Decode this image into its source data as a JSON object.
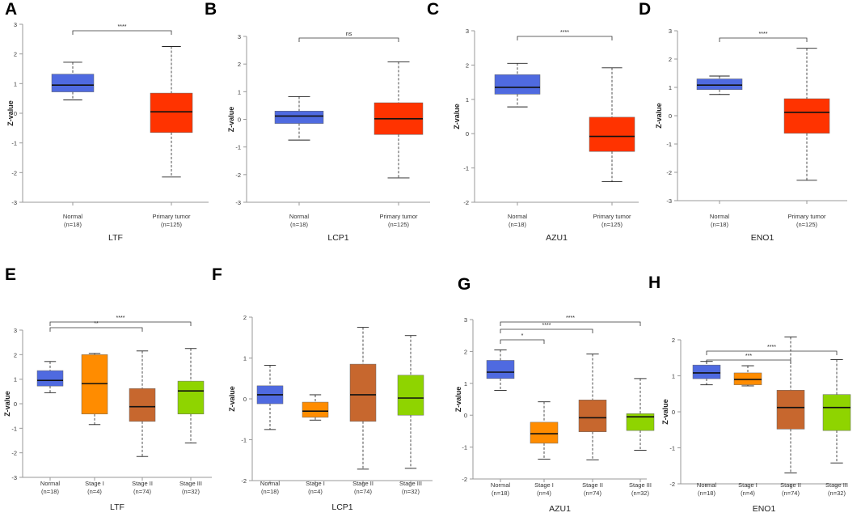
{
  "chart_data": [
    {
      "panel": "A",
      "type": "boxplot",
      "title": "LTF",
      "ylabel": "Z-value",
      "ylim": [
        -3,
        3
      ],
      "yticks": [
        -3,
        -2,
        -1,
        0,
        1,
        2,
        3
      ],
      "categories": [
        {
          "name": "Normal",
          "n": "(n=18)",
          "color": "#4F6AE0",
          "whisker_low": 0.45,
          "q1": 0.72,
          "median": 0.95,
          "q3": 1.32,
          "whisker_high": 1.72
        },
        {
          "name": "Primary tumor",
          "n": "(n=125)",
          "color": "#FF3300",
          "whisker_low": -2.15,
          "q1": -0.65,
          "median": 0.05,
          "q3": 0.68,
          "whisker_high": 2.25
        }
      ],
      "comparisons": [
        {
          "from": 0,
          "to": 1,
          "label": "****"
        }
      ]
    },
    {
      "panel": "B",
      "type": "boxplot",
      "title": "LCP1",
      "ylabel": "Z-value",
      "ylim": [
        -3,
        3
      ],
      "yticks": [
        -3,
        -2,
        -1,
        0,
        1,
        2,
        3
      ],
      "categories": [
        {
          "name": "Normal",
          "n": "(n=18)",
          "color": "#4F6AE0",
          "whisker_low": -0.75,
          "q1": -0.15,
          "median": 0.12,
          "q3": 0.3,
          "whisker_high": 0.82
        },
        {
          "name": "Primary tumor",
          "n": "(n=125)",
          "color": "#FF3300",
          "whisker_low": -2.12,
          "q1": -0.55,
          "median": 0.02,
          "q3": 0.6,
          "whisker_high": 2.08
        }
      ],
      "comparisons": [
        {
          "from": 0,
          "to": 1,
          "label": "ns"
        }
      ]
    },
    {
      "panel": "C",
      "type": "boxplot",
      "title": "AZU1",
      "ylabel": "Z-value",
      "ylim": [
        -2,
        3
      ],
      "yticks": [
        -2,
        -1,
        0,
        1,
        2,
        3
      ],
      "categories": [
        {
          "name": "Normal",
          "n": "(n=18)",
          "color": "#4F6AE0",
          "whisker_low": 0.78,
          "q1": 1.15,
          "median": 1.35,
          "q3": 1.72,
          "whisker_high": 2.05
        },
        {
          "name": "Primary tumor",
          "n": "(n=125)",
          "color": "#FF3300",
          "whisker_low": -1.4,
          "q1": -0.52,
          "median": -0.08,
          "q3": 0.48,
          "whisker_high": 1.92
        }
      ],
      "comparisons": [
        {
          "from": 0,
          "to": 1,
          "label": "****"
        }
      ]
    },
    {
      "panel": "D",
      "type": "boxplot",
      "title": "ENO1",
      "ylabel": "Z-value",
      "ylim": [
        -3,
        3
      ],
      "yticks": [
        -3,
        -2,
        -1,
        0,
        1,
        2,
        3
      ],
      "categories": [
        {
          "name": "Normal",
          "n": "(n=18)",
          "color": "#4F6AE0",
          "whisker_low": 0.75,
          "q1": 0.92,
          "median": 1.08,
          "q3": 1.3,
          "whisker_high": 1.4
        },
        {
          "name": "Primary tumor",
          "n": "(n=125)",
          "color": "#FF3300",
          "whisker_low": -2.28,
          "q1": -0.62,
          "median": 0.12,
          "q3": 0.6,
          "whisker_high": 2.38
        }
      ],
      "comparisons": [
        {
          "from": 0,
          "to": 1,
          "label": "****"
        }
      ]
    },
    {
      "panel": "E",
      "type": "boxplot",
      "title": "LTF",
      "ylabel": "Z-value",
      "ylim": [
        -3,
        3
      ],
      "yticks": [
        -3,
        -2,
        -1,
        0,
        1,
        2,
        3
      ],
      "categories": [
        {
          "name": "Normal",
          "n": "(n=18)",
          "color": "#4F6AE0",
          "whisker_low": 0.45,
          "q1": 0.72,
          "median": 0.95,
          "q3": 1.35,
          "whisker_high": 1.72
        },
        {
          "name": "Stage I",
          "n": "(n=4)",
          "color": "#FF8C00",
          "whisker_low": -0.85,
          "q1": -0.42,
          "median": 0.82,
          "q3": 2.0,
          "whisker_high": 2.05
        },
        {
          "name": "Stage II",
          "n": "(n=74)",
          "color": "#C7672E",
          "whisker_low": -2.15,
          "q1": -0.72,
          "median": -0.12,
          "q3": 0.62,
          "whisker_high": 2.15
        },
        {
          "name": "Stage III",
          "n": "(n=32)",
          "color": "#8FD400",
          "whisker_low": -1.6,
          "q1": -0.42,
          "median": 0.52,
          "q3": 0.92,
          "whisker_high": 2.25
        }
      ],
      "comparisons": [
        {
          "from": 0,
          "to": 2,
          "label": "**"
        },
        {
          "from": 0,
          "to": 3,
          "label": "****"
        }
      ]
    },
    {
      "panel": "F",
      "type": "boxplot",
      "title": "LCP1",
      "ylabel": "Z-value",
      "ylim": [
        -2,
        2
      ],
      "yticks": [
        -2,
        -1,
        0,
        1,
        2
      ],
      "categories": [
        {
          "name": "Normal",
          "n": "(n=18)",
          "color": "#4F6AE0",
          "whisker_low": -0.75,
          "q1": -0.12,
          "median": 0.1,
          "q3": 0.32,
          "whisker_high": 0.82
        },
        {
          "name": "Stage I",
          "n": "(n=4)",
          "color": "#FF8C00",
          "whisker_low": -0.52,
          "q1": -0.45,
          "median": -0.3,
          "q3": -0.08,
          "whisker_high": 0.1
        },
        {
          "name": "Stage II",
          "n": "(n=74)",
          "color": "#C7672E",
          "whisker_low": -1.72,
          "q1": -0.55,
          "median": 0.1,
          "q3": 0.85,
          "whisker_high": 1.75
        },
        {
          "name": "Stage III",
          "n": "(n=32)",
          "color": "#8FD400",
          "whisker_low": -1.7,
          "q1": -0.4,
          "median": 0.02,
          "q3": 0.58,
          "whisker_high": 1.55
        }
      ],
      "comparisons": []
    },
    {
      "panel": "G",
      "type": "boxplot",
      "title": "AZU1",
      "ylabel": "Z-value",
      "ylim": [
        -2,
        3
      ],
      "yticks": [
        -2,
        -1,
        0,
        1,
        2,
        3
      ],
      "categories": [
        {
          "name": "Normal",
          "n": "(n=18)",
          "color": "#4F6AE0",
          "whisker_low": 0.78,
          "q1": 1.15,
          "median": 1.35,
          "q3": 1.72,
          "whisker_high": 2.05
        },
        {
          "name": "Stage I",
          "n": "(n=4)",
          "color": "#FF8C00",
          "whisker_low": -1.38,
          "q1": -0.88,
          "median": -0.58,
          "q3": -0.22,
          "whisker_high": 0.42
        },
        {
          "name": "Stage II",
          "n": "(n=74)",
          "color": "#C7672E",
          "whisker_low": -1.4,
          "q1": -0.52,
          "median": -0.08,
          "q3": 0.48,
          "whisker_high": 1.92
        },
        {
          "name": "Stage III",
          "n": "(n=32)",
          "color": "#8FD400",
          "whisker_low": -1.1,
          "q1": -0.48,
          "median": -0.05,
          "q3": 0.05,
          "whisker_high": 1.15
        }
      ],
      "comparisons": [
        {
          "from": 0,
          "to": 1,
          "label": "*"
        },
        {
          "from": 0,
          "to": 2,
          "label": "****"
        },
        {
          "from": 0,
          "to": 3,
          "label": "****"
        }
      ]
    },
    {
      "panel": "H",
      "type": "boxplot",
      "title": "ENO1",
      "ylabel": "Z-value",
      "ylim": [
        -2,
        2
      ],
      "yticks": [
        -2,
        -1,
        0,
        1,
        2
      ],
      "categories": [
        {
          "name": "Normal",
          "n": "(n=18)",
          "color": "#4F6AE0",
          "whisker_low": 0.75,
          "q1": 0.92,
          "median": 1.08,
          "q3": 1.3,
          "whisker_high": 1.4
        },
        {
          "name": "Stage I",
          "n": "(n=4)",
          "color": "#FF8C00",
          "whisker_low": 0.72,
          "q1": 0.75,
          "median": 0.9,
          "q3": 1.08,
          "whisker_high": 1.28
        },
        {
          "name": "Stage II",
          "n": "(n=74)",
          "color": "#C7672E",
          "whisker_low": -1.7,
          "q1": -0.48,
          "median": 0.12,
          "q3": 0.6,
          "whisker_high": 2.08
        },
        {
          "name": "Stage III",
          "n": "(n=32)",
          "color": "#8FD400",
          "whisker_low": -1.42,
          "q1": -0.52,
          "median": 0.12,
          "q3": 0.48,
          "whisker_high": 1.45
        }
      ],
      "comparisons": [
        {
          "from": 0,
          "to": 2,
          "label": "***"
        },
        {
          "from": 0,
          "to": 3,
          "label": "****"
        }
      ]
    }
  ]
}
